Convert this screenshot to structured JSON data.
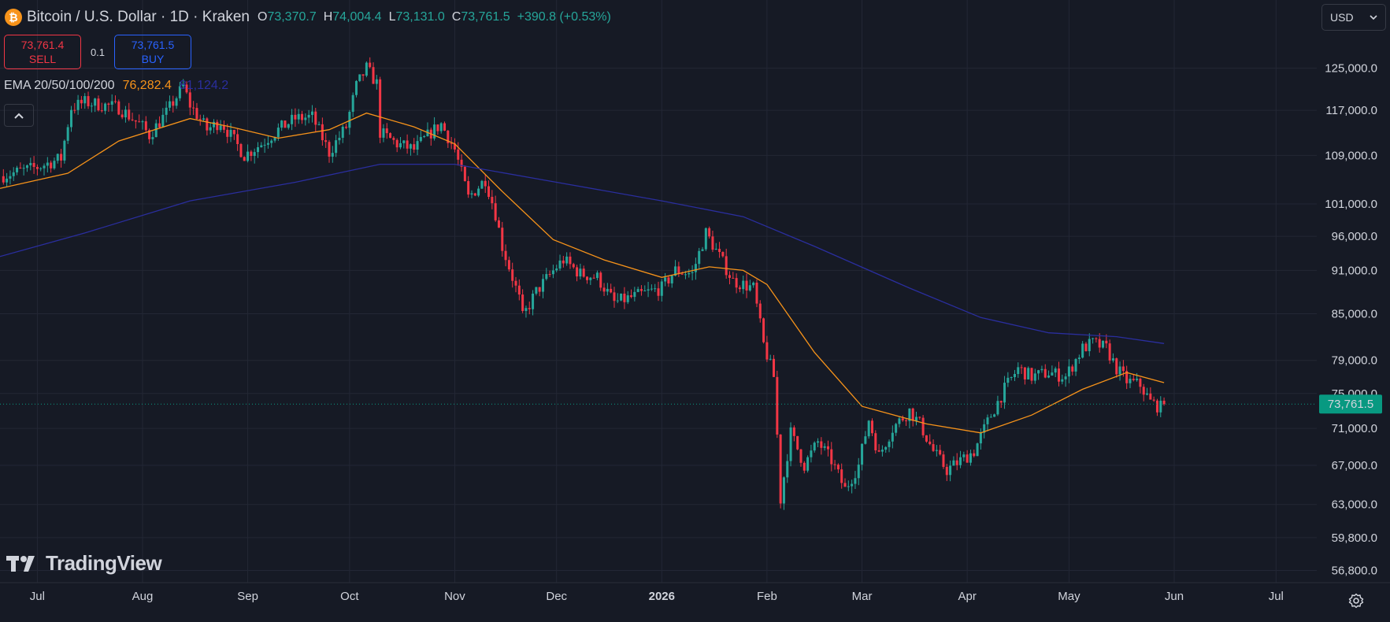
{
  "header": {
    "coin_symbol": "₿",
    "title": "Bitcoin / U.S. Dollar · 1D · Kraken",
    "ohlc": [
      {
        "key": "O",
        "value": "73,370.7"
      },
      {
        "key": "H",
        "value": "74,004.4"
      },
      {
        "key": "L",
        "value": "73,131.0"
      },
      {
        "key": "C",
        "value": "73,761.5"
      },
      {
        "key": "",
        "value": "+390.8 (+0.53%)"
      }
    ]
  },
  "trade": {
    "sell_price": "73,761.4",
    "sell_label": "SELL",
    "quantity": "0.1",
    "buy_price": "73,761.5",
    "buy_label": "BUY"
  },
  "indicator": {
    "name": "EMA 20/50/100/200",
    "value_1": "76,282.4",
    "value_2": "81,124.2"
  },
  "currency_selector": {
    "value": "USD"
  },
  "logo_text": "TradingView",
  "icons": {
    "coin": "bitcoin-icon",
    "collapse": "chevron-up-icon",
    "currency": "chevron-down-icon",
    "settings": "gear-icon"
  },
  "colors": {
    "background": "#161a25",
    "up": "#26a69a",
    "down": "#f23645",
    "ema_short": "#f7931a",
    "ema_long": "#2a2e9e",
    "grid": "#232735",
    "price_tag": "#089981"
  },
  "chart_data": {
    "type": "candlestick",
    "title": "Bitcoin / U.S. Dollar · 1D · Kraken",
    "interval": "1D",
    "y_scale": "log",
    "ylim": [
      56000,
      130000
    ],
    "grid": true,
    "y_ticks": [
      {
        "value": 125000,
        "label": "125,000.0"
      },
      {
        "value": 117000,
        "label": "117,000.0"
      },
      {
        "value": 109000,
        "label": "109,000.0"
      },
      {
        "value": 101000,
        "label": "101,000.0"
      },
      {
        "value": 96000,
        "label": "96,000.0"
      },
      {
        "value": 91000,
        "label": "91,000.0"
      },
      {
        "value": 85000,
        "label": "85,000.0"
      },
      {
        "value": 79000,
        "label": "79,000.0"
      },
      {
        "value": 75000,
        "label": "75,000.0"
      },
      {
        "value": 71000,
        "label": "71,000.0"
      },
      {
        "value": 67000,
        "label": "67,000.0"
      },
      {
        "value": 63000,
        "label": "63,000.0"
      },
      {
        "value": 59800,
        "label": "59,800.0"
      },
      {
        "value": 56800,
        "label": "56,800.0"
      }
    ],
    "x_ticks": [
      {
        "date": "2025-07-01",
        "label": "Jul",
        "bold": false
      },
      {
        "date": "2025-08-01",
        "label": "Aug",
        "bold": false
      },
      {
        "date": "2025-09-01",
        "label": "Sep",
        "bold": false
      },
      {
        "date": "2025-10-01",
        "label": "Oct",
        "bold": false
      },
      {
        "date": "2025-11-01",
        "label": "Nov",
        "bold": false
      },
      {
        "date": "2025-12-01",
        "label": "Dec",
        "bold": false
      },
      {
        "date": "2026-01-01",
        "label": "2026",
        "bold": true
      },
      {
        "date": "2026-02-01",
        "label": "Feb",
        "bold": false
      },
      {
        "date": "2026-03-01",
        "label": "Mar",
        "bold": false
      },
      {
        "date": "2026-04-01",
        "label": "Apr",
        "bold": false
      },
      {
        "date": "2026-05-01",
        "label": "May",
        "bold": false
      },
      {
        "date": "2026-06-01",
        "label": "Jun",
        "bold": false
      },
      {
        "date": "2026-07-01",
        "label": "Jul",
        "bold": false
      }
    ],
    "date_range": [
      "2025-06-20",
      "2026-07-13"
    ],
    "last_price": {
      "value": 73761.5,
      "label": "73,761.5"
    },
    "close_path": [
      [
        "2025-06-20",
        105500
      ],
      [
        "2025-07-01",
        107000
      ],
      [
        "2025-07-08",
        108500
      ],
      [
        "2025-07-11",
        117500
      ],
      [
        "2025-07-15",
        118500
      ],
      [
        "2025-07-25",
        117500
      ],
      [
        "2025-08-01",
        114000
      ],
      [
        "2025-08-03",
        112500
      ],
      [
        "2025-08-08",
        116500
      ],
      [
        "2025-08-13",
        121500
      ],
      [
        "2025-08-15",
        118000
      ],
      [
        "2025-08-20",
        113500
      ],
      [
        "2025-08-24",
        115000
      ],
      [
        "2025-08-31",
        109000
      ],
      [
        "2025-09-05",
        111000
      ],
      [
        "2025-09-10",
        113500
      ],
      [
        "2025-09-15",
        115500
      ],
      [
        "2025-09-20",
        115800
      ],
      [
        "2025-09-25",
        109500
      ],
      [
        "2025-09-30",
        114000
      ],
      [
        "2025-10-03",
        121500
      ],
      [
        "2025-10-06",
        125000
      ],
      [
        "2025-10-09",
        122000
      ],
      [
        "2025-10-10",
        113000
      ],
      [
        "2025-10-15",
        111000
      ],
      [
        "2025-10-20",
        110000
      ],
      [
        "2025-10-25",
        113000
      ],
      [
        "2025-10-28",
        114500
      ],
      [
        "2025-11-01",
        110000
      ],
      [
        "2025-11-05",
        102000
      ],
      [
        "2025-11-10",
        105000
      ],
      [
        "2025-11-13",
        99500
      ],
      [
        "2025-11-15",
        94500
      ],
      [
        "2025-11-20",
        87000
      ],
      [
        "2025-11-21",
        84500
      ],
      [
        "2025-11-25",
        88000
      ],
      [
        "2025-12-01",
        91500
      ],
      [
        "2025-12-03",
        92500
      ],
      [
        "2025-12-08",
        90500
      ],
      [
        "2025-12-13",
        90000
      ],
      [
        "2025-12-18",
        86500
      ],
      [
        "2025-12-25",
        87500
      ],
      [
        "2026-01-01",
        88500
      ],
      [
        "2026-01-05",
        91000
      ],
      [
        "2026-01-10",
        90500
      ],
      [
        "2026-01-14",
        96500
      ],
      [
        "2026-01-18",
        93000
      ],
      [
        "2026-01-22",
        89500
      ],
      [
        "2026-01-28",
        88500
      ],
      [
        "2026-01-31",
        81000
      ],
      [
        "2026-02-03",
        77000
      ],
      [
        "2026-02-05",
        63500
      ],
      [
        "2026-02-08",
        70500
      ],
      [
        "2026-02-12",
        67000
      ],
      [
        "2026-02-16",
        69500
      ],
      [
        "2026-02-20",
        67500
      ],
      [
        "2026-02-24",
        64500
      ],
      [
        "2026-02-28",
        67000
      ],
      [
        "2026-03-03",
        72000
      ],
      [
        "2026-03-06",
        68000
      ],
      [
        "2026-03-10",
        71000
      ],
      [
        "2026-03-15",
        73000
      ],
      [
        "2026-03-18",
        71500
      ],
      [
        "2026-03-22",
        68500
      ],
      [
        "2026-03-26",
        66500
      ],
      [
        "2026-03-30",
        67500
      ],
      [
        "2026-04-03",
        68500
      ],
      [
        "2026-04-08",
        72500
      ],
      [
        "2026-04-12",
        75500
      ],
      [
        "2026-04-16",
        78000
      ],
      [
        "2026-04-20",
        77000
      ],
      [
        "2026-04-25",
        77500
      ],
      [
        "2026-04-30",
        77000
      ],
      [
        "2026-05-05",
        80500
      ],
      [
        "2026-05-08",
        81200
      ],
      [
        "2026-05-12",
        80500
      ],
      [
        "2026-05-15",
        78000
      ],
      [
        "2026-05-18",
        76500
      ],
      [
        "2026-05-22",
        76000
      ],
      [
        "2026-05-25",
        74000
      ],
      [
        "2026-05-28",
        73370
      ],
      [
        "2026-05-29",
        73761.5
      ]
    ],
    "series": [
      {
        "name": "EMA 20/50/100/200",
        "value": "76,282.4",
        "color": "#f7931a",
        "points": [
          [
            "2025-06-20",
            103500
          ],
          [
            "2025-07-10",
            106000
          ],
          [
            "2025-07-25",
            111500
          ],
          [
            "2025-08-15",
            115500
          ],
          [
            "2025-08-27",
            114000
          ],
          [
            "2025-09-10",
            112000
          ],
          [
            "2025-09-25",
            113500
          ],
          [
            "2025-10-06",
            116500
          ],
          [
            "2025-10-20",
            114000
          ],
          [
            "2025-11-01",
            111000
          ],
          [
            "2025-11-15",
            103000
          ],
          [
            "2025-11-30",
            95500
          ],
          [
            "2025-12-15",
            92500
          ],
          [
            "2026-01-01",
            90000
          ],
          [
            "2026-01-15",
            91500
          ],
          [
            "2026-01-25",
            91000
          ],
          [
            "2026-02-01",
            89000
          ],
          [
            "2026-02-15",
            80000
          ],
          [
            "2026-03-01",
            73500
          ],
          [
            "2026-03-20",
            71500
          ],
          [
            "2026-04-05",
            70500
          ],
          [
            "2026-04-20",
            72500
          ],
          [
            "2026-05-05",
            75500
          ],
          [
            "2026-05-18",
            77500
          ],
          [
            "2026-05-29",
            76282.4
          ]
        ]
      },
      {
        "name": "EMA 20/50/100/200",
        "value": "81,124.2",
        "color": "#2a2e9e",
        "points": [
          [
            "2025-06-20",
            93000
          ],
          [
            "2025-07-15",
            96500
          ],
          [
            "2025-08-15",
            101500
          ],
          [
            "2025-09-15",
            104500
          ],
          [
            "2025-10-10",
            107500
          ],
          [
            "2025-11-01",
            107500
          ],
          [
            "2025-12-01",
            104500
          ],
          [
            "2026-01-01",
            101500
          ],
          [
            "2026-01-25",
            99000
          ],
          [
            "2026-02-15",
            94500
          ],
          [
            "2026-03-15",
            88500
          ],
          [
            "2026-04-05",
            84500
          ],
          [
            "2026-04-25",
            82500
          ],
          [
            "2026-05-15",
            82000
          ],
          [
            "2026-05-29",
            81124.2
          ]
        ]
      }
    ]
  }
}
